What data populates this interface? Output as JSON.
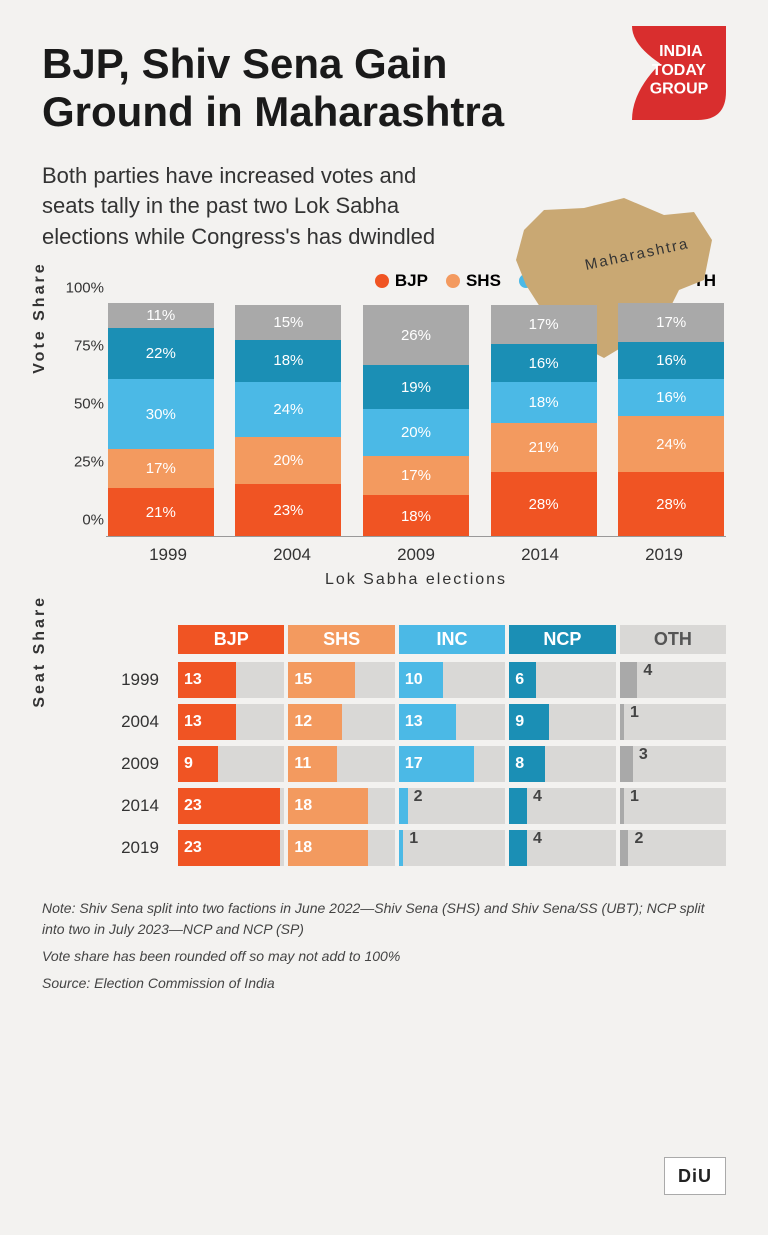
{
  "title": "BJP, Shiv Sena Gain Ground in Maharashtra",
  "subtitle": "Both parties have increased votes and seats tally in the past two Lok Sabha elections while Congress's has dwindled",
  "map_label": "Maharashtra",
  "logo_text_1": "INDIA",
  "logo_text_2": "TODAY",
  "logo_text_3": "GROUP",
  "diu_label": "DiU",
  "parties": [
    {
      "key": "BJP",
      "color": "#f05423"
    },
    {
      "key": "SHS",
      "color": "#f39a5f"
    },
    {
      "key": "INC",
      "color": "#4bb9e6"
    },
    {
      "key": "NCP",
      "color": "#1b8fb5"
    },
    {
      "key": "OTH",
      "color": "#a9a9a9"
    }
  ],
  "vote_chart": {
    "y_ticks": [
      "0%",
      "25%",
      "50%",
      "75%",
      "100%"
    ],
    "y_label": "Vote Share",
    "x_label": "Lok Sabha elections",
    "years": [
      "1999",
      "2004",
      "2009",
      "2014",
      "2019"
    ],
    "stacks": [
      [
        {
          "v": 21,
          "c": "#f05423"
        },
        {
          "v": 17,
          "c": "#f39a5f"
        },
        {
          "v": 30,
          "c": "#4bb9e6"
        },
        {
          "v": 22,
          "c": "#1b8fb5"
        },
        {
          "v": 11,
          "c": "#a9a9a9"
        }
      ],
      [
        {
          "v": 23,
          "c": "#f05423"
        },
        {
          "v": 20,
          "c": "#f39a5f"
        },
        {
          "v": 24,
          "c": "#4bb9e6"
        },
        {
          "v": 18,
          "c": "#1b8fb5"
        },
        {
          "v": 15,
          "c": "#a9a9a9"
        }
      ],
      [
        {
          "v": 18,
          "c": "#f05423"
        },
        {
          "v": 17,
          "c": "#f39a5f"
        },
        {
          "v": 20,
          "c": "#4bb9e6"
        },
        {
          "v": 19,
          "c": "#1b8fb5"
        },
        {
          "v": 26,
          "c": "#a9a9a9"
        }
      ],
      [
        {
          "v": 28,
          "c": "#f05423"
        },
        {
          "v": 21,
          "c": "#f39a5f"
        },
        {
          "v": 18,
          "c": "#4bb9e6"
        },
        {
          "v": 16,
          "c": "#1b8fb5"
        },
        {
          "v": 17,
          "c": "#a9a9a9"
        }
      ],
      [
        {
          "v": 28,
          "c": "#f05423"
        },
        {
          "v": 24,
          "c": "#f39a5f"
        },
        {
          "v": 16,
          "c": "#4bb9e6"
        },
        {
          "v": 16,
          "c": "#1b8fb5"
        },
        {
          "v": 17,
          "c": "#a9a9a9"
        }
      ]
    ]
  },
  "seat_chart": {
    "y_label": "Seat Share",
    "max": 24,
    "years": [
      "1999",
      "2004",
      "2009",
      "2014",
      "2019"
    ],
    "header_colors": {
      "BJP": "#f05423",
      "SHS": "#f39a5f",
      "INC": "#4bb9e6",
      "NCP": "#1b8fb5",
      "OTH": "#a9a9a9"
    },
    "header_text_colors": {
      "BJP": "#fff",
      "SHS": "#fff",
      "INC": "#fff",
      "NCP": "#fff",
      "OTH": "#555"
    },
    "header_bg": {
      "BJP": "#f05423",
      "SHS": "#f39a5f",
      "INC": "#4bb9e6",
      "NCP": "#1b8fb5",
      "OTH": "#d9d8d6"
    },
    "rows": [
      {
        "year": "1999",
        "vals": {
          "BJP": 13,
          "SHS": 15,
          "INC": 10,
          "NCP": 6,
          "OTH": 4
        }
      },
      {
        "year": "2004",
        "vals": {
          "BJP": 13,
          "SHS": 12,
          "INC": 13,
          "NCP": 9,
          "OTH": 1
        }
      },
      {
        "year": "2009",
        "vals": {
          "BJP": 9,
          "SHS": 11,
          "INC": 17,
          "NCP": 8,
          "OTH": 3
        }
      },
      {
        "year": "2014",
        "vals": {
          "BJP": 23,
          "SHS": 18,
          "INC": 2,
          "NCP": 4,
          "OTH": 1
        }
      },
      {
        "year": "2019",
        "vals": {
          "BJP": 23,
          "SHS": 18,
          "INC": 1,
          "NCP": 4,
          "OTH": 2
        }
      }
    ]
  },
  "notes": [
    "Note: Shiv Sena split into two factions in June 2022—Shiv Sena (SHS) and Shiv Sena/SS (UBT); NCP split into two in July 2023—NCP and NCP (SP)",
    "Vote share has been rounded off so may not add to 100%",
    "Source: Election Commission of India"
  ],
  "map_color": "#c9a873"
}
